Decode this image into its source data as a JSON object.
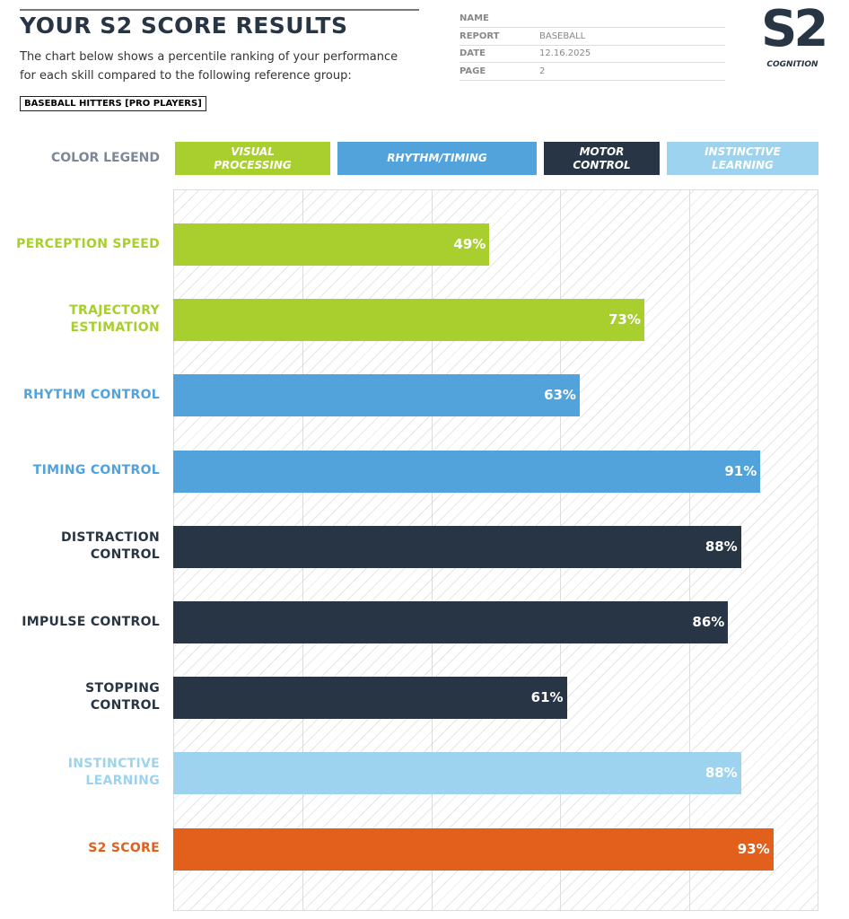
{
  "header": {
    "title": "YOUR S2 SCORE RESULTS",
    "description": "The chart below shows a percentile ranking of your performance for each skill compared to the following reference group:",
    "reference_group": "BASEBALL HITTERS [PRO PLAYERS]"
  },
  "info": {
    "rows": [
      {
        "label": "NAME"
      },
      {
        "label": "REPORT",
        "value": "BASEBALL"
      },
      {
        "label": "DATE",
        "value": "12.16.2025"
      },
      {
        "label": "PAGE",
        "value": "2"
      }
    ]
  },
  "logo": {
    "mark": "S2",
    "text": "COGNITION"
  },
  "chart_data": {
    "type": "bar",
    "orientation": "horizontal",
    "legend_title": "COLOR LEGEND",
    "legend": [
      {
        "name": "VISUAL PROCESSING",
        "color": "#a8cf2e"
      },
      {
        "name": "RHYTHM/TIMING",
        "color": "#52a3dc"
      },
      {
        "name": "MOTOR CONTROL",
        "color": "#283544"
      },
      {
        "name": "INSTINCTIVE LEARNING",
        "color": "#9dd3ee"
      }
    ],
    "categories": [
      "PERCEPTION SPEED",
      "TRAJECTORY ESTIMATION",
      "RHYTHM CONTROL",
      "TIMING CONTROL",
      "DISTRACTION CONTROL",
      "IMPULSE CONTROL",
      "STOPPING CONTROL",
      "INSTINCTIVE LEARNING",
      "S2 SCORE"
    ],
    "values": [
      49,
      73,
      63,
      91,
      88,
      86,
      61,
      88,
      93
    ],
    "value_labels": [
      "49%",
      "73%",
      "63%",
      "91%",
      "88%",
      "86%",
      "61%",
      "88%",
      "93%"
    ],
    "colors": [
      "#a8cf2e",
      "#a8cf2e",
      "#52a3dc",
      "#52a3dc",
      "#283544",
      "#283544",
      "#283544",
      "#9dd3ee",
      "#e35f1c"
    ],
    "xlim": [
      0,
      100
    ],
    "xticks": [
      0,
      20,
      40,
      60,
      80,
      100
    ],
    "grid": true
  }
}
